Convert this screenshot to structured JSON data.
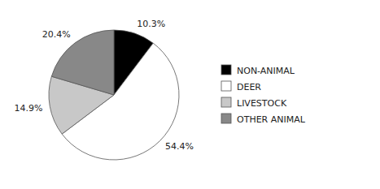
{
  "chart_data": {
    "type": "pie",
    "categories": [
      "NON-ANIMAL",
      "DEER",
      "LIVESTOCK",
      "OTHER ANIMAL"
    ],
    "values": [
      10.3,
      54.4,
      14.9,
      20.4
    ],
    "value_labels": [
      "10.3%",
      "54.4%",
      "14.9%",
      "20.4%"
    ],
    "colors": [
      "#000000",
      "#ffffff",
      "#c8c8c8",
      "#888888"
    ],
    "data_labels": true,
    "legend": "right"
  }
}
